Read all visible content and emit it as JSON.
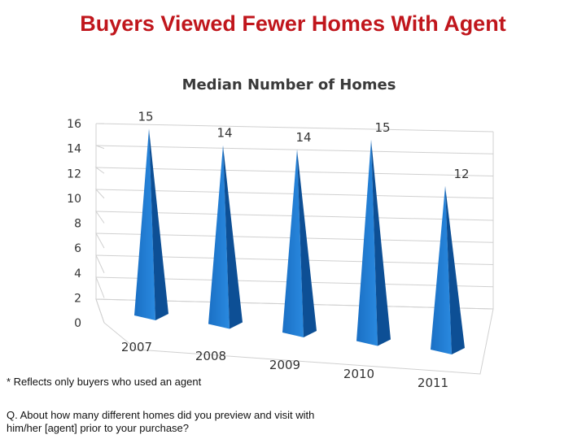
{
  "slide": {
    "title": "Buyers Viewed Fewer Homes With Agent",
    "footnote": "* Reflects only buyers who used an agent",
    "question": "Q. About how many different homes did you preview and visit with him/her [agent] prior to your purchase?"
  },
  "colors": {
    "title": "#c0161c",
    "pyramid_light": "#2a8ae0",
    "pyramid_dark": "#0d4f95",
    "grid": "#d0d0d0"
  },
  "chart_data": {
    "type": "bar",
    "title": "Median Number of Homes",
    "categories": [
      "2007",
      "2008",
      "2009",
      "2010",
      "2011"
    ],
    "values": [
      15,
      14,
      14,
      15,
      12
    ],
    "ylim": [
      0,
      16
    ],
    "yticks": [
      "0",
      "2",
      "4",
      "6",
      "8",
      "10",
      "12",
      "14",
      "16"
    ],
    "grid": true,
    "style": "3d-pyramid"
  }
}
